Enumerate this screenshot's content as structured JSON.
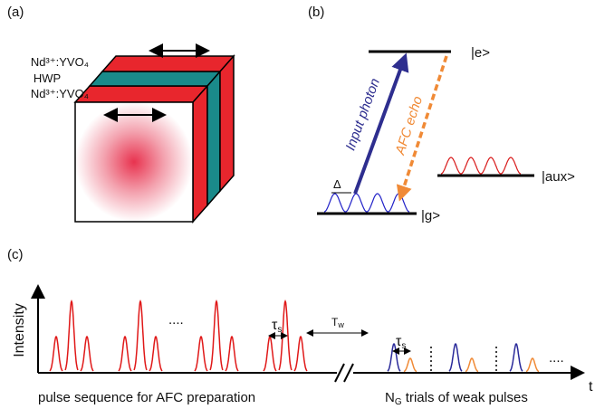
{
  "panel_a": {
    "label": "(a)",
    "layer_top": "Nd³⁺:YVO₄",
    "layer_mid": "HWP",
    "layer_bottom": "Nd³⁺:YVO₄"
  },
  "panel_b": {
    "label": "(b)",
    "level_e": "|e>",
    "level_g": "|g>",
    "level_aux": "|aux>",
    "arrow_in": "Input photon",
    "arrow_out": "AFC echo",
    "delta": "Δ"
  },
  "panel_c": {
    "label": "(c)",
    "y_axis": "Intensity",
    "x_axis": "t",
    "dots_red": "....",
    "dots_weak": "....",
    "tau_1": {
      "main": "τ",
      "sub": "s"
    },
    "tau_2": {
      "main": "τ",
      "sub": "s"
    },
    "t_w": {
      "main": "T",
      "sub": "w"
    },
    "caption_left": "pulse sequence for AFC preparation",
    "caption_right": {
      "main": "N",
      "sub": "G",
      "rest": " trials of weak pulses"
    }
  }
}
